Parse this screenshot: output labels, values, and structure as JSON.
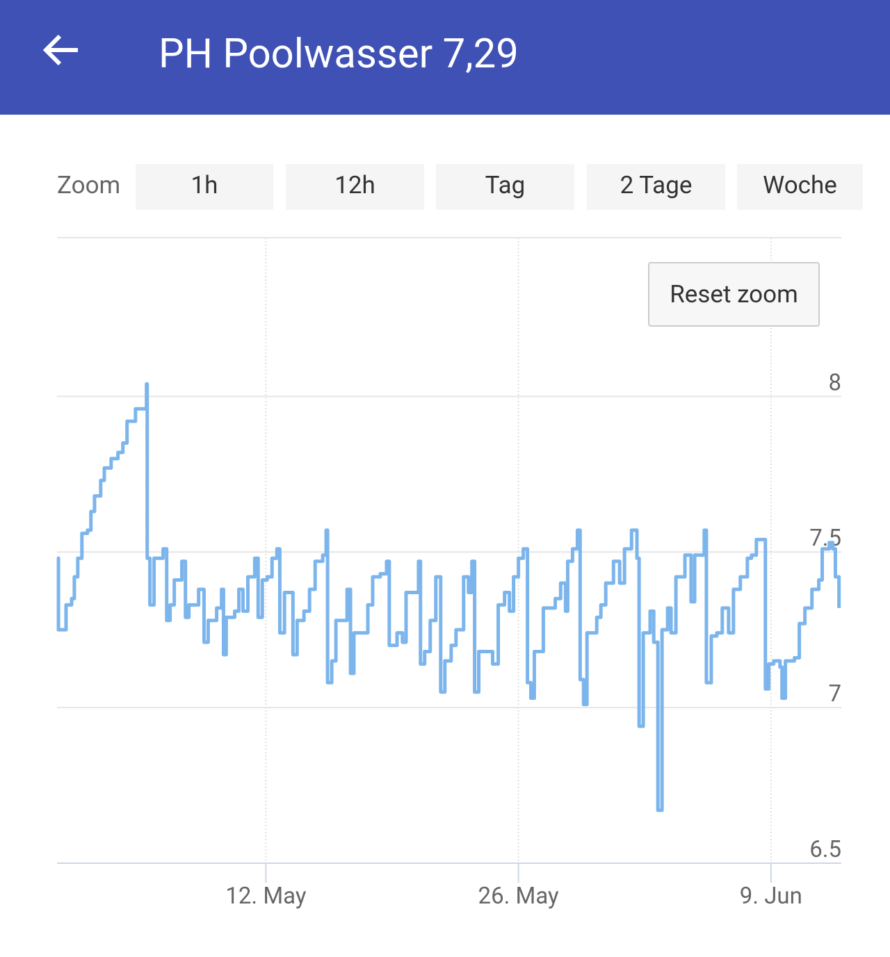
{
  "header": {
    "title": "PH Poolwasser 7,29"
  },
  "zoom": {
    "label": "Zoom",
    "buttons": [
      "1h",
      "12h",
      "Tag",
      "2 Tage",
      "Woche"
    ]
  },
  "reset_button": "Reset zoom",
  "chart_data": {
    "type": "line",
    "grid": true,
    "xlim": [
      0.42,
      43.9
    ],
    "xticks": [
      {
        "value": 12,
        "label": "12. May"
      },
      {
        "value": 26,
        "label": "26. May"
      },
      {
        "value": 40,
        "label": "9. Jun"
      }
    ],
    "ylim": [
      6.5,
      8.51
    ],
    "yticks": [
      6.5,
      7,
      7.5,
      8
    ],
    "series": [
      {
        "color": "#7cb5ec",
        "x": [
          0.42,
          0.5,
          0.8,
          0.92,
          1.23,
          1.38,
          1.57,
          1.8,
          2.11,
          2.3,
          2.5,
          2.84,
          3.04,
          3.42,
          3.8,
          4.07,
          4.3,
          4.77,
          5.27,
          5.38,
          5.42,
          5.57,
          5.8,
          6.19,
          6.3,
          6.5,
          6.69,
          6.92,
          7.34,
          7.54,
          7.73,
          8.27,
          8.57,
          8.8,
          9.27,
          9.54,
          9.65,
          9.8,
          10.27,
          10.5,
          10.73,
          11.0,
          11.38,
          11.57,
          11.8,
          12.07,
          12.34,
          12.61,
          12.77,
          13.03,
          13.34,
          13.5,
          13.73,
          14.11,
          14.42,
          14.73,
          15.15,
          15.34,
          15.42,
          15.65,
          15.88,
          16.27,
          16.5,
          16.69,
          16.88,
          17.27,
          17.65,
          17.92,
          18.34,
          18.69,
          18.84,
          19.27,
          19.57,
          19.77,
          20.23,
          20.46,
          20.57,
          20.8,
          21.11,
          21.42,
          21.69,
          21.92,
          22.27,
          22.54,
          22.96,
          23.23,
          23.42,
          23.57,
          23.8,
          24.19,
          24.57,
          24.88,
          25.23,
          25.5,
          25.73,
          26.0,
          26.27,
          26.5,
          26.69,
          26.88,
          27.38,
          27.65,
          28.04,
          28.34,
          28.61,
          28.73,
          29.0,
          29.27,
          29.42,
          29.61,
          29.8,
          30.34,
          30.57,
          30.84,
          31.27,
          31.61,
          31.88,
          32.27,
          32.57,
          32.69,
          32.92,
          33.3,
          33.5,
          33.73,
          33.96,
          34.27,
          34.46,
          34.73,
          35.23,
          35.57,
          35.77,
          36.3,
          36.42,
          36.69,
          37.0,
          37.3,
          37.65,
          37.92,
          38.3,
          38.69,
          38.92,
          39.19,
          39.57,
          39.69,
          39.88,
          40.15,
          40.5,
          40.61,
          40.8,
          41.3,
          41.57,
          41.88,
          42.27,
          42.65,
          42.84,
          43.23,
          43.42,
          43.57,
          43.77
        ],
        "values": [
          7.48,
          7.25,
          7.25,
          7.33,
          7.35,
          7.42,
          7.48,
          7.56,
          7.57,
          7.63,
          7.68,
          7.73,
          7.77,
          7.8,
          7.82,
          7.85,
          7.92,
          7.96,
          7.96,
          8.04,
          7.48,
          7.33,
          7.48,
          7.48,
          7.51,
          7.28,
          7.33,
          7.41,
          7.47,
          7.29,
          7.33,
          7.38,
          7.21,
          7.28,
          7.32,
          7.38,
          7.17,
          7.29,
          7.31,
          7.38,
          7.31,
          7.42,
          7.48,
          7.29,
          7.41,
          7.42,
          7.48,
          7.51,
          7.24,
          7.37,
          7.37,
          7.17,
          7.28,
          7.31,
          7.38,
          7.47,
          7.49,
          7.57,
          7.08,
          7.15,
          7.28,
          7.28,
          7.38,
          7.11,
          7.24,
          7.24,
          7.33,
          7.42,
          7.43,
          7.47,
          7.2,
          7.24,
          7.21,
          7.37,
          7.37,
          7.47,
          7.14,
          7.18,
          7.28,
          7.42,
          7.05,
          7.15,
          7.2,
          7.25,
          7.42,
          7.37,
          7.47,
          7.05,
          7.18,
          7.18,
          7.14,
          7.33,
          7.37,
          7.31,
          7.42,
          7.48,
          7.51,
          7.08,
          7.03,
          7.18,
          7.32,
          7.32,
          7.35,
          7.4,
          7.31,
          7.47,
          7.51,
          7.57,
          7.09,
          7.01,
          7.24,
          7.29,
          7.33,
          7.4,
          7.47,
          7.4,
          7.51,
          7.57,
          7.48,
          6.94,
          7.24,
          7.31,
          7.21,
          6.67,
          7.25,
          7.32,
          7.24,
          7.42,
          7.49,
          7.34,
          7.49,
          7.57,
          7.08,
          7.23,
          7.24,
          7.32,
          7.24,
          7.38,
          7.42,
          7.48,
          7.49,
          7.54,
          7.54,
          7.06,
          7.14,
          7.15,
          7.13,
          7.03,
          7.15,
          7.16,
          7.27,
          7.32,
          7.38,
          7.41,
          7.51,
          7.53,
          7.51,
          7.42,
          7.32
        ]
      }
    ]
  }
}
